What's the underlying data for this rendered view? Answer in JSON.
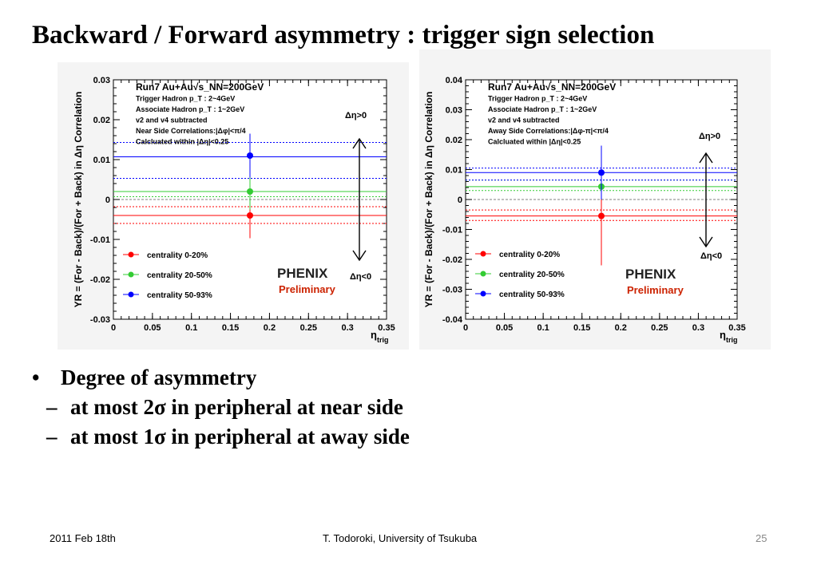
{
  "slide": {
    "title": "Backward / Forward asymmetry : trigger sign selection",
    "bullet_main": "Degree of asymmetry",
    "bullet_subs": [
      "at most 2σ in peripheral at near side",
      "at most 1σ in peripheral at away side"
    ]
  },
  "footer": {
    "date": "2011 Feb 18th",
    "author": "T. Todoroki, University of Tsukuba",
    "page": "25"
  },
  "colors": {
    "c0_20": "#ff0000",
    "c20_50": "#33cc33",
    "c50_93": "#0000ff"
  },
  "chart_data": [
    {
      "type": "scatter",
      "ylabel": "YR = (For - Back)/(For + Back) in Δη Correlation",
      "xlabel": "η",
      "xlabel_sub": "trig",
      "xlim": [
        0,
        0.35
      ],
      "ylim": [
        -0.03,
        0.03
      ],
      "xticks": [
        "0",
        "0.05",
        "0.1",
        "0.15",
        "0.2",
        "0.25",
        "0.3",
        "0.35"
      ],
      "yticks": [
        "-0.03",
        "-0.02",
        "-0.01",
        "0",
        "0.01",
        "0.02",
        "0.03"
      ],
      "info_lines": [
        "Run7 Au+Au√s_NN=200GeV",
        "Trigger Hadron p_T : 2~4GeV",
        "Associate Hadron p_T : 1~2GeV",
        "v2 and v4 subtracted",
        "Near Side Correlations:|Δφ|<π/4",
        "Calcluated within |Δη|<0.25"
      ],
      "annot_up": "Δη>0",
      "annot_down": "Δη<0",
      "logo": "PHENIX",
      "logo_sub": "Preliminary",
      "series": [
        {
          "name": "centrality 0-20%",
          "color": "#ff0000",
          "x": 0.175,
          "y": -0.004,
          "yerr_low": 0.0057,
          "yerr_high": 0.0057,
          "band_y": [
            -0.006,
            -0.004,
            -0.0018
          ]
        },
        {
          "name": "centrality 20-50%",
          "color": "#33cc33",
          "x": 0.175,
          "y": 0.002,
          "yerr_low": 0.0045,
          "yerr_high": 0.0045,
          "band_y": [
            0.0007,
            0.002,
            0.0053
          ]
        },
        {
          "name": "centrality 50-93%",
          "color": "#0000ff",
          "x": 0.175,
          "y": 0.011,
          "yerr_low": 0.0055,
          "yerr_high": 0.0055,
          "band_y": [
            0.0053,
            0.0107,
            0.0143
          ]
        }
      ]
    },
    {
      "type": "scatter",
      "ylabel": "YR = (For - Back)/(For + Back) in Δη Correlation",
      "xlabel": "η",
      "xlabel_sub": "trig",
      "xlim": [
        0,
        0.35
      ],
      "ylim": [
        -0.04,
        0.04
      ],
      "xticks": [
        "0",
        "0.05",
        "0.1",
        "0.15",
        "0.2",
        "0.25",
        "0.3",
        "0.35"
      ],
      "yticks": [
        "-0.04",
        "-0.03",
        "-0.02",
        "-0.01",
        "0",
        "0.01",
        "0.02",
        "0.03",
        "0.04"
      ],
      "info_lines": [
        "Run7 Au+Au√s_NN=200GeV",
        "Trigger Hadron p_T : 2~4GeV",
        "Associate Hadron p_T : 1~2GeV",
        "v2 and v4 subtracted",
        "Away Side Correlations:|Δφ-π|<π/4",
        "Calcluated within |Δη|<0.25"
      ],
      "annot_up": "Δη>0",
      "annot_down": "Δη<0",
      "logo": "PHENIX",
      "logo_sub": "Preliminary",
      "series": [
        {
          "name": "centrality 0-20%",
          "color": "#ff0000",
          "x": 0.175,
          "y": -0.0055,
          "yerr_low": 0.0165,
          "yerr_high": 0.0165,
          "band_y": [
            -0.007,
            -0.0055,
            -0.0035
          ]
        },
        {
          "name": "centrality 20-50%",
          "color": "#33cc33",
          "x": 0.175,
          "y": 0.0043,
          "yerr_low": 0.0035,
          "yerr_high": 0.0035,
          "band_y": [
            0.003,
            0.0043,
            0.0065
          ]
        },
        {
          "name": "centrality 50-93%",
          "color": "#0000ff",
          "x": 0.175,
          "y": 0.009,
          "yerr_low": 0.009,
          "yerr_high": 0.009,
          "band_y": [
            0.0065,
            0.009,
            0.0105
          ]
        }
      ]
    }
  ]
}
